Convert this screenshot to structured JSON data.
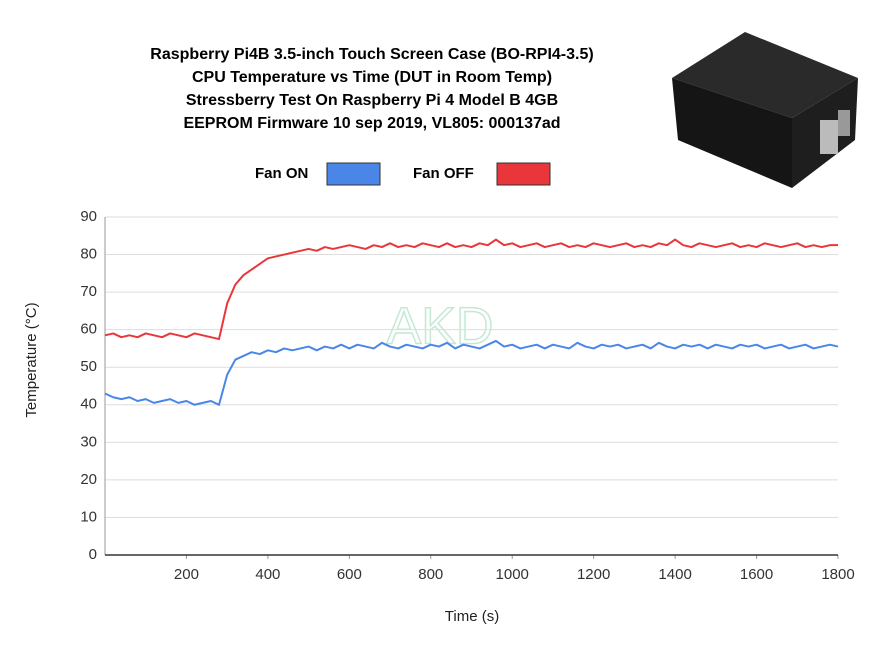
{
  "chart_data": {
    "type": "line",
    "title": [
      "Raspberry Pi4B 3.5-inch Touch Screen Case (BO-RPI4-3.5)",
      "CPU Temperature vs Time (DUT in Room Temp)",
      "Stressberry Test On Raspberry Pi 4 Model B 4GB",
      "EEPROM Firmware 10 sep 2019, VL805: 000137ad"
    ],
    "watermark": "AKD",
    "x_label": "Time (s)",
    "y_label": "Temperature (°C)",
    "x": [
      0,
      20,
      40,
      60,
      80,
      100,
      120,
      140,
      160,
      180,
      200,
      220,
      240,
      260,
      280,
      300,
      320,
      340,
      360,
      380,
      400,
      420,
      440,
      460,
      480,
      500,
      520,
      540,
      560,
      580,
      600,
      620,
      640,
      660,
      680,
      700,
      720,
      740,
      760,
      780,
      800,
      820,
      840,
      860,
      880,
      900,
      920,
      940,
      960,
      980,
      1000,
      1020,
      1040,
      1060,
      1080,
      1100,
      1120,
      1140,
      1160,
      1180,
      1200,
      1220,
      1240,
      1260,
      1280,
      1300,
      1320,
      1340,
      1360,
      1380,
      1400,
      1420,
      1440,
      1460,
      1480,
      1500,
      1520,
      1540,
      1560,
      1580,
      1600,
      1620,
      1640,
      1660,
      1680,
      1700,
      1720,
      1740,
      1760,
      1780,
      1800
    ],
    "series": [
      {
        "name": "Fan ON",
        "color": "#4a86e8",
        "values": [
          43,
          42,
          41.5,
          42,
          41,
          41.5,
          40.5,
          41,
          41.5,
          40.5,
          41,
          40,
          40.5,
          41,
          40,
          48,
          52,
          53,
          54,
          53.5,
          54.5,
          54,
          55,
          54.5,
          55,
          55.5,
          54.5,
          55.5,
          55,
          56,
          55,
          56,
          55.5,
          55,
          56.5,
          55.5,
          55,
          56,
          55.5,
          55,
          56,
          55.5,
          56.5,
          55,
          56,
          55.5,
          55,
          56,
          57,
          55.5,
          56,
          55,
          55.5,
          56,
          55,
          56,
          55.5,
          55,
          56.5,
          55.5,
          55,
          56,
          55.5,
          56,
          55,
          55.5,
          56,
          55,
          56.5,
          55.5,
          55,
          56,
          55.5,
          56,
          55,
          56,
          55.5,
          55,
          56,
          55.5,
          56,
          55,
          55.5,
          56,
          55,
          55.5,
          56,
          55,
          55.5,
          56,
          55.5
        ]
      },
      {
        "name": "Fan OFF",
        "color": "#e8363a",
        "values": [
          58.5,
          59,
          58,
          58.5,
          58,
          59,
          58.5,
          58,
          59,
          58.5,
          58,
          59,
          58.5,
          58,
          57.5,
          67,
          72,
          74.5,
          76,
          77.5,
          79,
          79.5,
          80,
          80.5,
          81,
          81.5,
          81,
          82,
          81.5,
          82,
          82.5,
          82,
          81.5,
          82.5,
          82,
          83,
          82,
          82.5,
          82,
          83,
          82.5,
          82,
          83,
          82,
          82.5,
          82,
          83,
          82.5,
          84,
          82.5,
          83,
          82,
          82.5,
          83,
          82,
          82.5,
          83,
          82,
          82.5,
          82,
          83,
          82.5,
          82,
          82.5,
          83,
          82,
          82.5,
          82,
          83,
          82.5,
          84,
          82.5,
          82,
          83,
          82.5,
          82,
          82.5,
          83,
          82,
          82.5,
          82,
          83,
          82.5,
          82,
          82.5,
          83,
          82,
          82.5,
          82,
          82.5,
          82.5
        ]
      }
    ],
    "xlim": [
      0,
      1800
    ],
    "xticks": [
      200,
      400,
      600,
      800,
      1000,
      1200,
      1400,
      1600,
      1800
    ],
    "ylim": [
      0,
      90
    ],
    "yticks": [
      0,
      10,
      20,
      30,
      40,
      50,
      60,
      70,
      80,
      90
    ],
    "grid": true
  }
}
